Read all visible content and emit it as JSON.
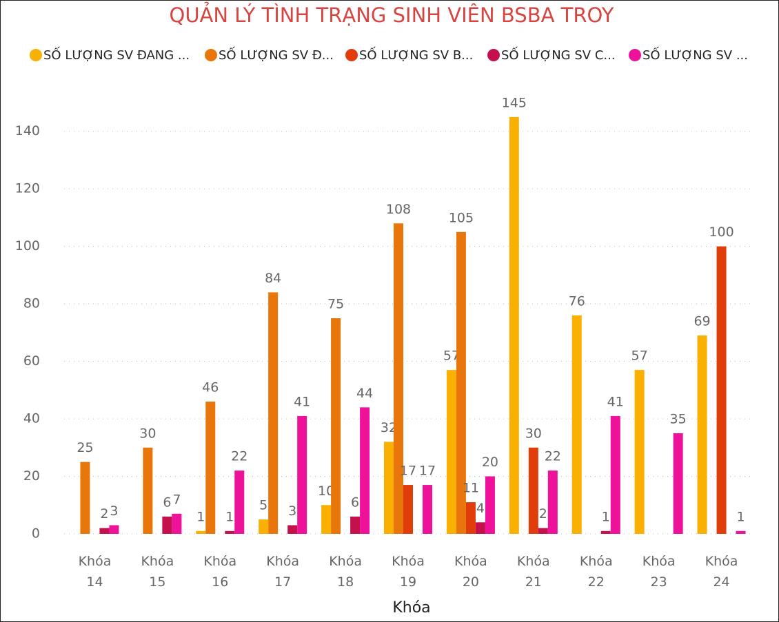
{
  "chart_data": {
    "type": "bar",
    "title": "QUẢN LÝ TÌNH TRẠNG SINH VIÊN BSBA TROY",
    "x_label": "Khóa",
    "categories": [
      "Khóa 14",
      "Khóa 15",
      "Khóa 16",
      "Khóa 17",
      "Khóa 18",
      "Khóa 19",
      "Khóa 20",
      "Khóa 21",
      "Khóa 22",
      "Khóa 23",
      "Khóa 24"
    ],
    "series": [
      {
        "name": "SỐ LƯỢNG SV ĐANG ...",
        "color": "#F9B000",
        "values": [
          null,
          null,
          1,
          5,
          10,
          32,
          57,
          145,
          76,
          57,
          69
        ]
      },
      {
        "name": "SỐ LƯỢNG SV Đ...",
        "color": "#E8760A",
        "values": [
          25,
          30,
          46,
          84,
          75,
          108,
          105,
          null,
          null,
          null,
          null
        ]
      },
      {
        "name": "SỐ LƯỢNG SV B...",
        "color": "#E13D0B",
        "values": [
          null,
          null,
          null,
          null,
          null,
          17,
          11,
          30,
          null,
          null,
          100
        ]
      },
      {
        "name": "SỐ LƯỢNG SV C...",
        "color": "#C5114B",
        "values": [
          2,
          6,
          1,
          3,
          6,
          null,
          4,
          2,
          1,
          null,
          null
        ]
      },
      {
        "name": "SỐ LƯỢNG SV ...",
        "color": "#EE1199",
        "values": [
          3,
          7,
          22,
          41,
          44,
          17,
          20,
          22,
          41,
          35,
          1
        ]
      }
    ],
    "ylim": [
      0,
      150
    ],
    "yticks": [
      0,
      20,
      40,
      60,
      80,
      100,
      120,
      140
    ],
    "grid": true
  }
}
